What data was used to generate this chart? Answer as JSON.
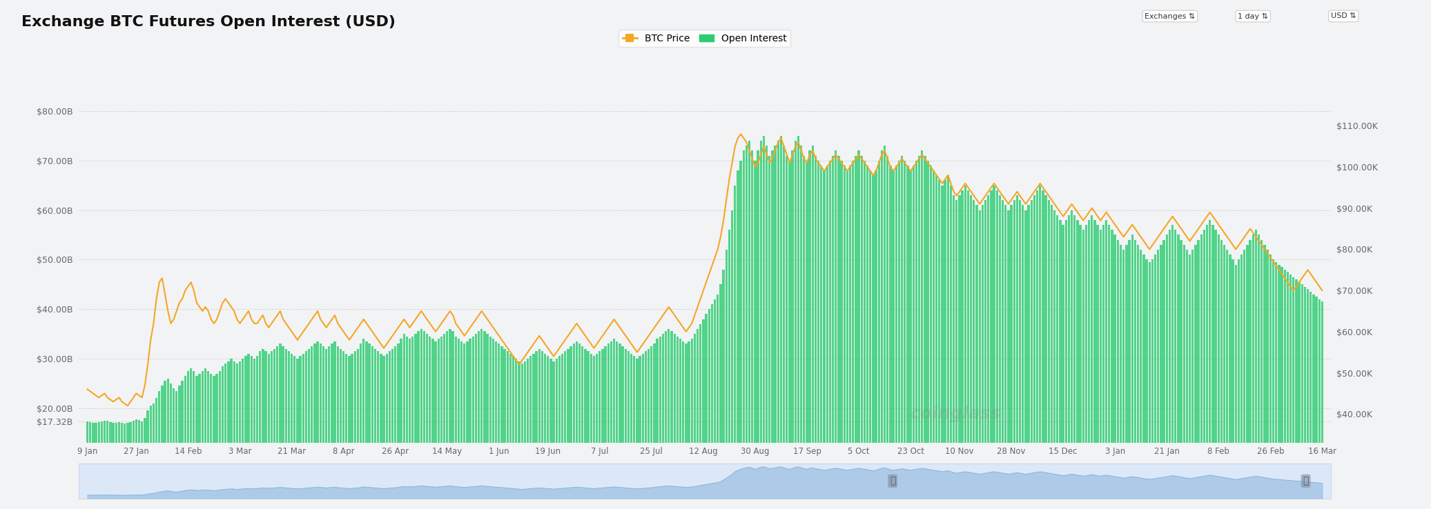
{
  "title": "Exchange BTC Futures Open Interest (USD)",
  "background_color": "#f2f3f5",
  "chart_bg": "#f2f3f5",
  "left_yticks_values": [
    17.32,
    20,
    30,
    40,
    50,
    60,
    70,
    80
  ],
  "right_yticks_values": [
    40000,
    50000,
    60000,
    70000,
    80000,
    90000,
    100000,
    110000
  ],
  "left_ylim": [
    13,
    87
  ],
  "right_ylim": [
    33000,
    122000
  ],
  "oi_color": "#2ecc71",
  "btc_color": "#f5a623",
  "legend_btc": "BTC Price",
  "legend_oi": "Open Interest",
  "xtick_labels": [
    "9 Jan",
    "27 Jan",
    "14 Feb",
    "3 Mar",
    "21 Mar",
    "8 Apr",
    "26 Apr",
    "14 May",
    "1 Jun",
    "19 Jun",
    "7 Jul",
    "25 Jul",
    "12 Aug",
    "30 Aug",
    "17 Sep",
    "5 Oct",
    "23 Oct",
    "10 Nov",
    "28 Nov",
    "15 Dec",
    "3 Jan",
    "21 Jan",
    "8 Feb",
    "26 Feb",
    "16 Mar"
  ],
  "open_interest": [
    17.32,
    17.2,
    17.1,
    17.0,
    17.15,
    17.3,
    17.5,
    17.4,
    17.2,
    17.0,
    17.1,
    17.2,
    17.0,
    16.9,
    17.0,
    17.2,
    17.5,
    17.8,
    17.6,
    17.3,
    18.0,
    19.5,
    20.5,
    21.0,
    22.0,
    23.5,
    24.5,
    25.5,
    26.0,
    25.0,
    24.0,
    23.5,
    24.5,
    25.5,
    26.5,
    27.5,
    28.0,
    27.5,
    26.5,
    27.0,
    27.5,
    28.0,
    27.5,
    27.0,
    26.5,
    27.0,
    27.5,
    28.5,
    29.0,
    29.5,
    30.0,
    29.5,
    29.0,
    29.5,
    30.0,
    30.5,
    31.0,
    30.5,
    30.0,
    30.5,
    31.5,
    32.0,
    31.5,
    31.0,
    31.5,
    32.0,
    32.5,
    33.0,
    32.5,
    32.0,
    31.5,
    31.0,
    30.5,
    30.0,
    30.5,
    31.0,
    31.5,
    32.0,
    32.5,
    33.0,
    33.5,
    33.0,
    32.5,
    32.0,
    32.5,
    33.0,
    33.5,
    32.5,
    32.0,
    31.5,
    31.0,
    30.5,
    31.0,
    31.5,
    32.0,
    33.0,
    34.0,
    33.5,
    33.0,
    32.5,
    32.0,
    31.5,
    31.0,
    30.5,
    31.0,
    31.5,
    32.0,
    32.5,
    33.0,
    34.0,
    35.0,
    34.5,
    34.0,
    34.5,
    35.0,
    35.5,
    36.0,
    35.5,
    35.0,
    34.5,
    34.0,
    33.5,
    34.0,
    34.5,
    35.0,
    35.5,
    36.0,
    35.5,
    34.5,
    34.0,
    33.5,
    33.0,
    33.5,
    34.0,
    34.5,
    35.0,
    35.5,
    36.0,
    35.5,
    35.0,
    34.5,
    34.0,
    33.5,
    33.0,
    32.5,
    32.0,
    31.5,
    31.0,
    30.5,
    30.0,
    29.5,
    29.0,
    29.5,
    30.0,
    30.5,
    31.0,
    31.5,
    32.0,
    31.5,
    31.0,
    30.5,
    30.0,
    29.5,
    30.0,
    30.5,
    31.0,
    31.5,
    32.0,
    32.5,
    33.0,
    33.5,
    33.0,
    32.5,
    32.0,
    31.5,
    31.0,
    30.5,
    31.0,
    31.5,
    32.0,
    32.5,
    33.0,
    33.5,
    34.0,
    33.5,
    33.0,
    32.5,
    32.0,
    31.5,
    31.0,
    30.5,
    30.0,
    30.5,
    31.0,
    31.5,
    32.0,
    32.5,
    33.0,
    34.0,
    34.5,
    35.0,
    35.5,
    36.0,
    35.5,
    35.0,
    34.5,
    34.0,
    33.5,
    33.0,
    33.5,
    34.0,
    35.0,
    36.0,
    37.0,
    38.0,
    39.0,
    40.0,
    41.0,
    42.0,
    43.0,
    45.0,
    48.0,
    52.0,
    56.0,
    60.0,
    65.0,
    68.0,
    70.0,
    72.0,
    73.0,
    74.0,
    72.0,
    70.0,
    72.0,
    74.0,
    75.0,
    73.0,
    71.0,
    72.0,
    73.0,
    74.0,
    75.0,
    73.0,
    71.0,
    70.0,
    72.0,
    74.0,
    75.0,
    73.0,
    71.0,
    70.0,
    72.0,
    73.0,
    71.0,
    70.0,
    69.0,
    68.0,
    69.0,
    70.0,
    71.0,
    72.0,
    71.0,
    70.0,
    69.0,
    68.0,
    69.0,
    70.0,
    71.0,
    72.0,
    71.0,
    70.0,
    69.0,
    68.0,
    67.0,
    68.0,
    70.0,
    72.0,
    73.0,
    71.0,
    69.0,
    68.0,
    69.0,
    70.0,
    71.0,
    70.0,
    69.0,
    68.0,
    69.0,
    70.0,
    71.0,
    72.0,
    71.0,
    70.0,
    69.0,
    68.0,
    67.0,
    66.0,
    65.0,
    66.0,
    67.0,
    65.0,
    63.0,
    62.0,
    63.0,
    64.0,
    65.0,
    64.0,
    63.0,
    62.0,
    61.0,
    60.0,
    61.0,
    62.0,
    63.0,
    64.0,
    65.0,
    64.0,
    63.0,
    62.0,
    61.0,
    60.0,
    61.0,
    62.0,
    63.0,
    62.0,
    61.0,
    60.0,
    61.0,
    62.0,
    63.0,
    64.0,
    65.0,
    64.0,
    63.0,
    62.0,
    61.0,
    60.0,
    59.0,
    58.0,
    57.0,
    58.0,
    59.0,
    60.0,
    59.0,
    58.0,
    57.0,
    56.0,
    57.0,
    58.0,
    59.0,
    58.0,
    57.0,
    56.0,
    57.0,
    58.0,
    57.0,
    56.0,
    55.0,
    54.0,
    53.0,
    52.0,
    53.0,
    54.0,
    55.0,
    54.0,
    53.0,
    52.0,
    51.0,
    50.0,
    49.5,
    50.0,
    51.0,
    52.0,
    53.0,
    54.0,
    55.0,
    56.0,
    57.0,
    56.0,
    55.0,
    54.0,
    53.0,
    52.0,
    51.0,
    52.0,
    53.0,
    54.0,
    55.0,
    56.0,
    57.0,
    58.0,
    57.0,
    56.0,
    55.0,
    54.0,
    53.0,
    52.0,
    51.0,
    50.0,
    49.0,
    50.0,
    51.0,
    52.0,
    53.0,
    54.0,
    55.0,
    56.0,
    55.0,
    54.0,
    53.0,
    52.0,
    51.0,
    50.0,
    49.5,
    49.0,
    48.5,
    48.0,
    47.5,
    47.0,
    46.5,
    46.0,
    45.5,
    45.0,
    44.5,
    44.0,
    43.5,
    43.0,
    42.5,
    42.0,
    41.5
  ],
  "btc_price": [
    46000,
    45500,
    45000,
    44500,
    44000,
    44500,
    45000,
    44000,
    43500,
    43000,
    43500,
    44000,
    43000,
    42500,
    42000,
    43000,
    44000,
    45000,
    44500,
    44000,
    47000,
    52000,
    58000,
    62000,
    68000,
    72000,
    73000,
    69000,
    65000,
    62000,
    63000,
    65000,
    67000,
    68000,
    70000,
    71000,
    72000,
    70000,
    67000,
    66000,
    65000,
    66000,
    65000,
    63000,
    62000,
    63000,
    65000,
    67000,
    68000,
    67000,
    66000,
    65000,
    63000,
    62000,
    63000,
    64000,
    65000,
    63000,
    62000,
    62000,
    63000,
    64000,
    62000,
    61000,
    62000,
    63000,
    64000,
    65000,
    63000,
    62000,
    61000,
    60000,
    59000,
    58000,
    59000,
    60000,
    61000,
    62000,
    63000,
    64000,
    65000,
    63000,
    62000,
    61000,
    62000,
    63000,
    64000,
    62000,
    61000,
    60000,
    59000,
    58000,
    59000,
    60000,
    61000,
    62000,
    63000,
    62000,
    61000,
    60000,
    59000,
    58000,
    57000,
    56000,
    57000,
    58000,
    59000,
    60000,
    61000,
    62000,
    63000,
    62000,
    61000,
    62000,
    63000,
    64000,
    65000,
    64000,
    63000,
    62000,
    61000,
    60000,
    61000,
    62000,
    63000,
    64000,
    65000,
    64000,
    62000,
    61000,
    60000,
    59000,
    60000,
    61000,
    62000,
    63000,
    64000,
    65000,
    64000,
    63000,
    62000,
    61000,
    60000,
    59000,
    58000,
    57000,
    56000,
    55000,
    54000,
    53000,
    52000,
    53000,
    54000,
    55000,
    56000,
    57000,
    58000,
    59000,
    58000,
    57000,
    56000,
    55000,
    54000,
    55000,
    56000,
    57000,
    58000,
    59000,
    60000,
    61000,
    62000,
    61000,
    60000,
    59000,
    58000,
    57000,
    56000,
    57000,
    58000,
    59000,
    60000,
    61000,
    62000,
    63000,
    62000,
    61000,
    60000,
    59000,
    58000,
    57000,
    56000,
    55000,
    56000,
    57000,
    58000,
    59000,
    60000,
    61000,
    62000,
    63000,
    64000,
    65000,
    66000,
    65000,
    64000,
    63000,
    62000,
    61000,
    60000,
    61000,
    62000,
    64000,
    66000,
    68000,
    70000,
    72000,
    74000,
    76000,
    78000,
    80000,
    83000,
    87000,
    92000,
    97000,
    101000,
    105000,
    107000,
    108000,
    107000,
    106000,
    104000,
    102000,
    100000,
    101000,
    103000,
    105000,
    103000,
    101000,
    102000,
    104000,
    106000,
    107000,
    105000,
    103000,
    101000,
    103000,
    105000,
    106000,
    104000,
    102000,
    101000,
    103000,
    104000,
    102000,
    101000,
    100000,
    99000,
    100000,
    101000,
    102000,
    103000,
    102000,
    101000,
    100000,
    99000,
    100000,
    101000,
    102000,
    103000,
    102000,
    101000,
    100000,
    99000,
    98000,
    99000,
    101000,
    103000,
    104000,
    102000,
    100000,
    99000,
    100000,
    101000,
    102000,
    101000,
    100000,
    99000,
    100000,
    101000,
    102000,
    103000,
    102000,
    101000,
    100000,
    99000,
    98000,
    97000,
    96000,
    97000,
    98000,
    96000,
    94000,
    93000,
    94000,
    95000,
    96000,
    95000,
    94000,
    93000,
    92000,
    91000,
    92000,
    93000,
    94000,
    95000,
    96000,
    95000,
    94000,
    93000,
    92000,
    91000,
    92000,
    93000,
    94000,
    93000,
    92000,
    91000,
    92000,
    93000,
    94000,
    95000,
    96000,
    95000,
    94000,
    93000,
    92000,
    91000,
    90000,
    89000,
    88000,
    89000,
    90000,
    91000,
    90000,
    89000,
    88000,
    87000,
    88000,
    89000,
    90000,
    89000,
    88000,
    87000,
    88000,
    89000,
    88000,
    87000,
    86000,
    85000,
    84000,
    83000,
    84000,
    85000,
    86000,
    85000,
    84000,
    83000,
    82000,
    81000,
    80000,
    81000,
    82000,
    83000,
    84000,
    85000,
    86000,
    87000,
    88000,
    87000,
    86000,
    85000,
    84000,
    83000,
    82000,
    83000,
    84000,
    85000,
    86000,
    87000,
    88000,
    89000,
    88000,
    87000,
    86000,
    85000,
    84000,
    83000,
    82000,
    81000,
    80000,
    81000,
    82000,
    83000,
    84000,
    85000,
    84000,
    83000,
    82000,
    81000,
    80000,
    79000,
    78000,
    77000,
    76000,
    75000,
    74000,
    73000,
    72000,
    71000,
    70000,
    71000,
    72000,
    73000,
    74000,
    75000,
    74000,
    73000,
    72000,
    71000,
    70000
  ]
}
